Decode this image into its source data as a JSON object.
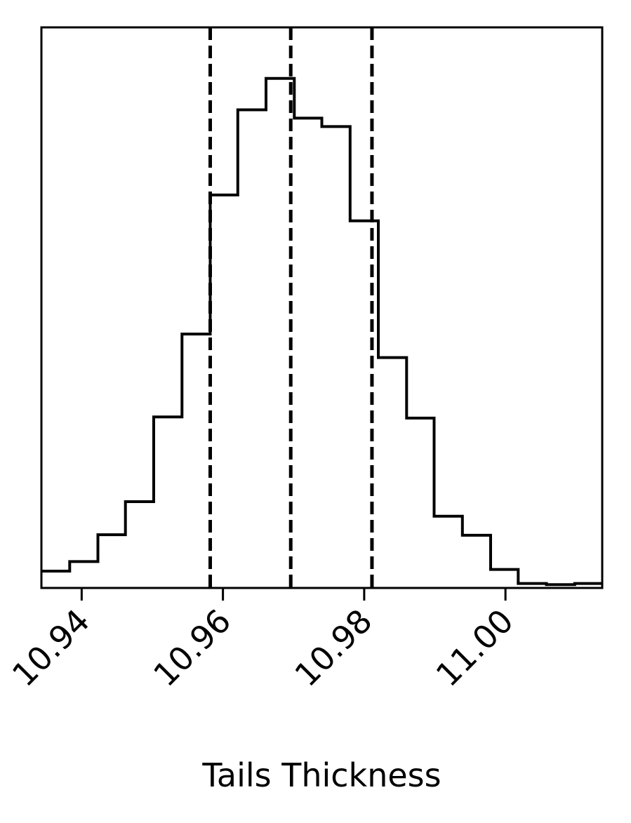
{
  "chart_data": {
    "type": "histogram",
    "xlabel": "Tails Thickness",
    "ylabel": "",
    "xlim": [
      10.9343,
      11.0137
    ],
    "ylim": [
      0,
      1.0
    ],
    "yticks_shown": false,
    "xticks": [
      10.94,
      10.96,
      10.98,
      11.0
    ],
    "xtick_labels": [
      "10.94",
      "10.96",
      "10.98",
      "11.00"
    ],
    "bin_edges": [
      10.9343,
      10.9383,
      10.9423,
      10.9462,
      10.9502,
      10.9542,
      10.9582,
      10.9621,
      10.9661,
      10.9701,
      10.974,
      10.978,
      10.982,
      10.986,
      10.9899,
      10.9939,
      10.9979,
      11.0018,
      11.0058,
      11.0098,
      11.0137
    ],
    "counts": [
      0.03,
      0.047,
      0.095,
      0.154,
      0.305,
      0.453,
      0.701,
      0.853,
      0.909,
      0.838,
      0.823,
      0.655,
      0.411,
      0.303,
      0.128,
      0.094,
      0.033,
      0.008,
      0.006,
      0.008
    ],
    "quantile_lines": [
      10.9582,
      10.9696,
      10.9811
    ],
    "line_color": "#000000",
    "grid": false,
    "legend": "none"
  }
}
